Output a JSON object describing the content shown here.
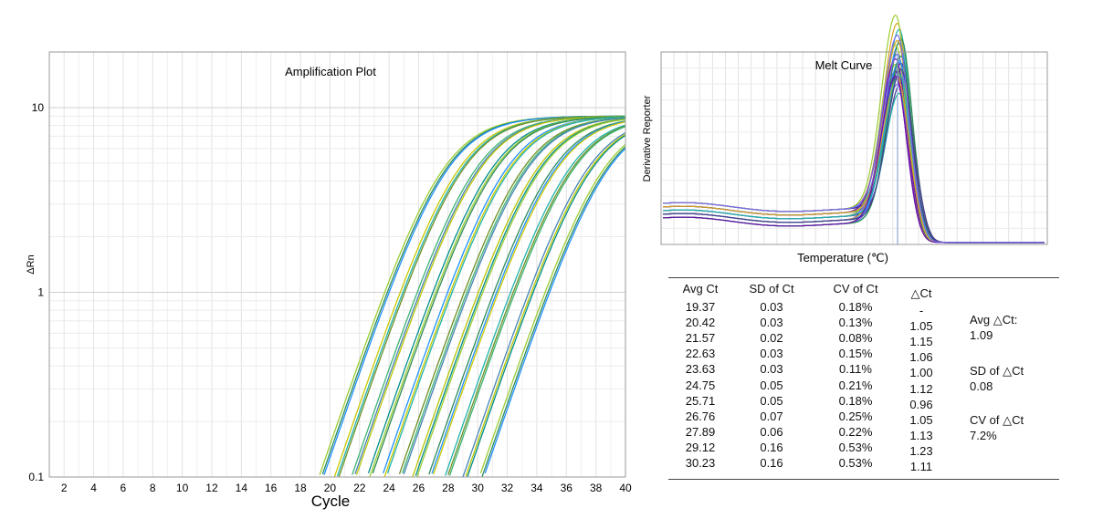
{
  "chart_data": [
    {
      "type": "line",
      "title": "Amplification Plot",
      "xlabel": "Cycle",
      "ylabel": "ΔRn",
      "yscale": "log",
      "xlim": [
        1,
        40
      ],
      "ylim": [
        0.1,
        20
      ],
      "xticks": [
        2,
        4,
        6,
        8,
        10,
        12,
        14,
        16,
        18,
        20,
        22,
        24,
        26,
        28,
        30,
        32,
        34,
        36,
        38,
        40
      ],
      "yticks": [
        {
          "value": 10,
          "label": "10"
        },
        {
          "value": 1,
          "label": "1"
        },
        {
          "value": 0.1,
          "label": "0.1"
        }
      ],
      "threshold_crossing_cycles": [
        19.37,
        20.42,
        21.57,
        22.63,
        23.63,
        24.75,
        25.71,
        26.76,
        27.89,
        29.12,
        30.23
      ],
      "plateau": 9,
      "grid": true,
      "series_colors": [
        "#9acd32",
        "#2e8b57",
        "#1e90ff",
        "#c8c800",
        "#20b2aa",
        "#6b8e23",
        "#3cb371",
        "#4682b4",
        "#b8c400",
        "#008b8b"
      ]
    },
    {
      "type": "line",
      "title": "Melt Curve",
      "xlabel": "Temperature (℃)",
      "ylabel": "Derivative Reporter",
      "peak_position": "single sharp peak near right side",
      "grid": true,
      "series_colors": [
        "#6a0dad",
        "#7b68ee",
        "#1e90ff",
        "#2e8b57",
        "#9acd32",
        "#daa520",
        "#20b2aa",
        "#483d8b"
      ]
    }
  ],
  "table": {
    "headers": [
      "Avg Ct",
      "SD of Ct",
      "CV of Ct",
      "△Ct"
    ],
    "rows": [
      [
        "19.37",
        "0.03",
        "0.18%",
        "-"
      ],
      [
        "20.42",
        "0.03",
        "0.13%",
        "1.05"
      ],
      [
        "21.57",
        "0.02",
        "0.08%",
        "1.15"
      ],
      [
        "22.63",
        "0.03",
        "0.15%",
        "1.06"
      ],
      [
        "23.63",
        "0.03",
        "0.11%",
        "1.00"
      ],
      [
        "24.75",
        "0.05",
        "0.21%",
        "1.12"
      ],
      [
        "25.71",
        "0.05",
        "0.18%",
        "0.96"
      ],
      [
        "26.76",
        "0.07",
        "0.25%",
        "1.05"
      ],
      [
        "27.89",
        "0.06",
        "0.22%",
        "1.13"
      ],
      [
        "29.12",
        "0.16",
        "0.53%",
        "1.23"
      ],
      [
        "30.23",
        "0.16",
        "0.53%",
        "1.11"
      ]
    ],
    "summary": [
      {
        "label": "Avg △Ct:",
        "value": "1.09"
      },
      {
        "label": "SD of △Ct",
        "value": "0.08"
      },
      {
        "label": "CV of △Ct",
        "value": "7.2%"
      }
    ]
  }
}
